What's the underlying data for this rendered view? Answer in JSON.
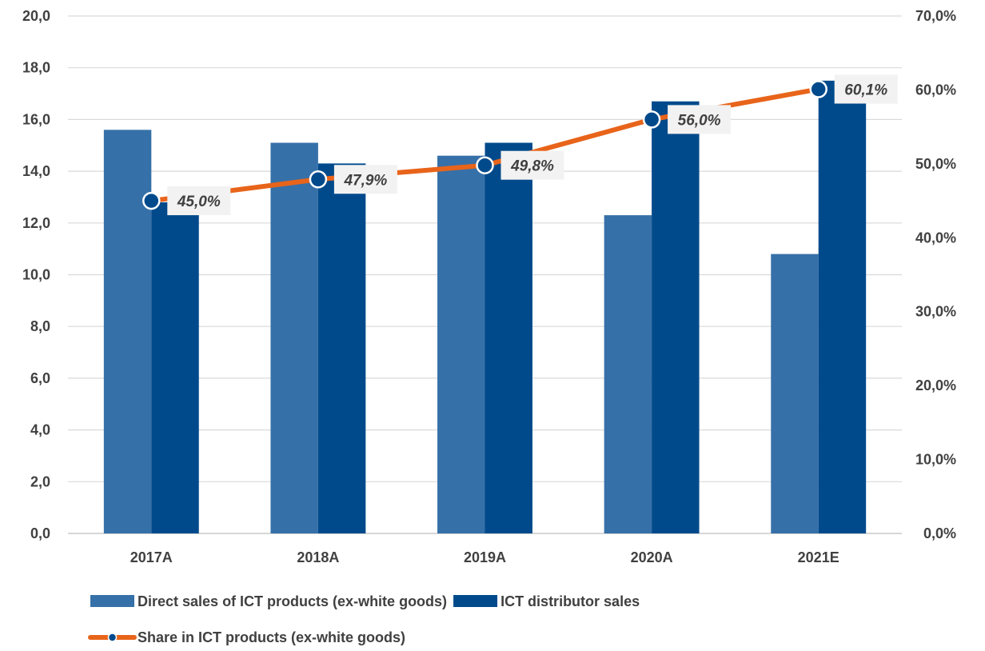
{
  "chart_data": {
    "type": "bar",
    "title": "",
    "categories": [
      "2017A",
      "2018A",
      "2019A",
      "2020A",
      "2021E"
    ],
    "series": [
      {
        "name": "Direct sales of ICT products (ex-white goods)",
        "type": "bar",
        "axis": "left",
        "color": "#3670A8",
        "values": [
          15.6,
          15.1,
          14.6,
          12.3,
          10.8
        ]
      },
      {
        "name": "ICT distributor sales",
        "type": "bar",
        "axis": "left",
        "color": "#004A8C",
        "values": [
          12.8,
          14.3,
          15.1,
          16.7,
          17.5
        ]
      },
      {
        "name": "Share in ICT products (ex-white goods)",
        "type": "line",
        "axis": "right",
        "color": "#E8641A",
        "marker_color": "#004A8C",
        "values": [
          45.0,
          47.9,
          49.8,
          56.0,
          60.1
        ],
        "data_labels": [
          "45,0%",
          "47,9%",
          "49,8%",
          "56,0%",
          "60,1%"
        ]
      }
    ],
    "y_left": {
      "ylim": [
        0,
        20
      ],
      "ticks": [
        0,
        2,
        4,
        6,
        8,
        10,
        12,
        14,
        16,
        18,
        20
      ],
      "tick_labels": [
        "0,0",
        "2,0",
        "4,0",
        "6,0",
        "8,0",
        "10,0",
        "12,0",
        "14,0",
        "16,0",
        "18,0",
        "20,0"
      ]
    },
    "y_right": {
      "ylim": [
        0,
        70
      ],
      "ticks": [
        0,
        10,
        20,
        30,
        40,
        50,
        60,
        70
      ],
      "tick_labels": [
        "0,0%",
        "10,0%",
        "20,0%",
        "30,0%",
        "40,0%",
        "50,0%",
        "60,0%",
        "70,0%"
      ]
    },
    "grid": true,
    "legend": "bottom-left"
  }
}
